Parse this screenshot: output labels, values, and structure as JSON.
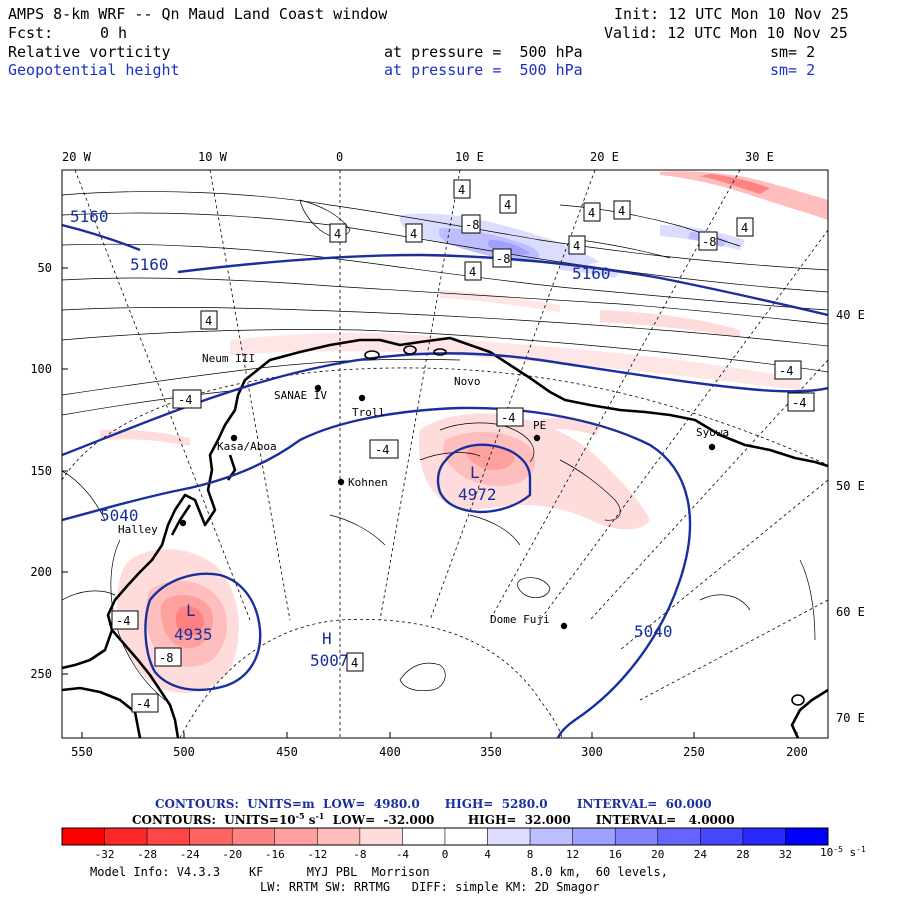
{
  "header": {
    "title": "AMPS 8-km WRF -- Qn Maud Land Coast window",
    "init": "Init: 12 UTC Mon 10 Nov 25",
    "fcst_label": "Fcst:",
    "fcst_value": "0 h",
    "valid": "Valid: 12 UTC Mon 10 Nov 25",
    "field1_name": "Relative vorticity",
    "field1_level": "at pressure =  500 hPa",
    "field1_sm": "sm= 2",
    "field2_name": "Geopotential height",
    "field2_level": "at pressure =  500 hPa",
    "field2_sm": "sm= 2"
  },
  "map": {
    "lon_top": [
      "20 W",
      "10 W",
      "0",
      "10 E",
      "20 E",
      "30 E"
    ],
    "lon_right": [
      "40 E",
      "50 E",
      "60 E",
      "70 E"
    ],
    "y_left": [
      "50",
      "100",
      "150",
      "200",
      "250"
    ],
    "x_bottom": [
      "550",
      "500",
      "450",
      "400",
      "350",
      "300",
      "250",
      "200"
    ],
    "stations": [
      "Neum III",
      "SANAE IV",
      "Troll",
      "Novo",
      "PE",
      "Syowa",
      "Kasa/Aboa",
      "Kohnen",
      "Halley",
      "Dome Fuji"
    ],
    "geo_labels": [
      "5160",
      "5160",
      "5160",
      "5040",
      "5040",
      "L",
      "4972",
      "L",
      "4935",
      "H",
      "5007"
    ],
    "vort_labels": [
      "4",
      "4",
      "4",
      "4",
      "4",
      "4",
      "4",
      "4",
      "4",
      "4",
      "-8",
      "-8",
      "-8",
      "4",
      "-4",
      "-4",
      "-4",
      "-4",
      "-4",
      "-4",
      "-8",
      "-4",
      "4"
    ],
    "colors": {
      "geopotential": "#1a2f9e",
      "coast": "#000000"
    }
  },
  "footer": {
    "geo_contours": "CONTOURS:  UNITS=m  LOW=  4980.0      HIGH=  5280.0       INTERVAL=  60.000",
    "vort_contours_a": "CONTOURS:  UNITS=10",
    "vort_contours_b": "-5",
    "vort_contours_c": " s",
    "vort_contours_d": "-1",
    "vort_contours_e": "  LOW=  -32.000        HIGH=  32.000      INTERVAL=   4.0000",
    "colorbar_values": [
      "-32",
      "-28",
      "-24",
      "-20",
      "-16",
      "-12",
      "-8",
      "-4",
      "0",
      "4",
      "8",
      "12",
      "16",
      "20",
      "24",
      "28",
      "32"
    ],
    "colorbar_unit_a": "10",
    "colorbar_unit_b": "-5",
    "colorbar_unit_c": " s",
    "colorbar_unit_d": "-1",
    "colorbar_colors": [
      "#ff0000",
      "#ff2828",
      "#ff4646",
      "#ff6464",
      "#ff8282",
      "#ffa0a0",
      "#ffbebe",
      "#ffdcdc",
      "#ffffff",
      "#ffffff",
      "#dcdcff",
      "#bebeff",
      "#a0a0ff",
      "#8282ff",
      "#6464ff",
      "#4646ff",
      "#2828ff",
      "#0000ff"
    ],
    "model_info_1": "Model Info: V4.3.3    KF      MYJ PBL  Morrison              8.0 km,  60 levels,",
    "model_info_2": "LW: RRTM SW: RRTMG   DIFF: simple KM: 2D Smagor"
  }
}
